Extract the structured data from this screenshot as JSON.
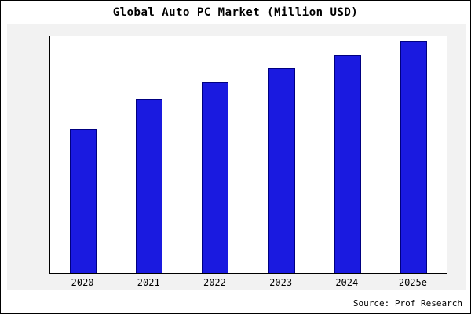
{
  "source": "Source: Prof Research",
  "chart_data": {
    "type": "bar",
    "title": "Global Auto PC Market (Million USD)",
    "categories": [
      "2020",
      "2021",
      "2022",
      "2023",
      "2024",
      "2025e"
    ],
    "values": [
      62,
      75,
      82,
      88,
      94,
      100
    ],
    "xlabel": "",
    "ylabel": "",
    "ylim": [
      0,
      102
    ],
    "grid": false,
    "legend": "none",
    "bar_color": "#1a1ae0",
    "bar_edge_color": "#000080",
    "figure_background": "#f2f2f2",
    "plot_background": "#ffffff",
    "axis_color": "#000000"
  }
}
